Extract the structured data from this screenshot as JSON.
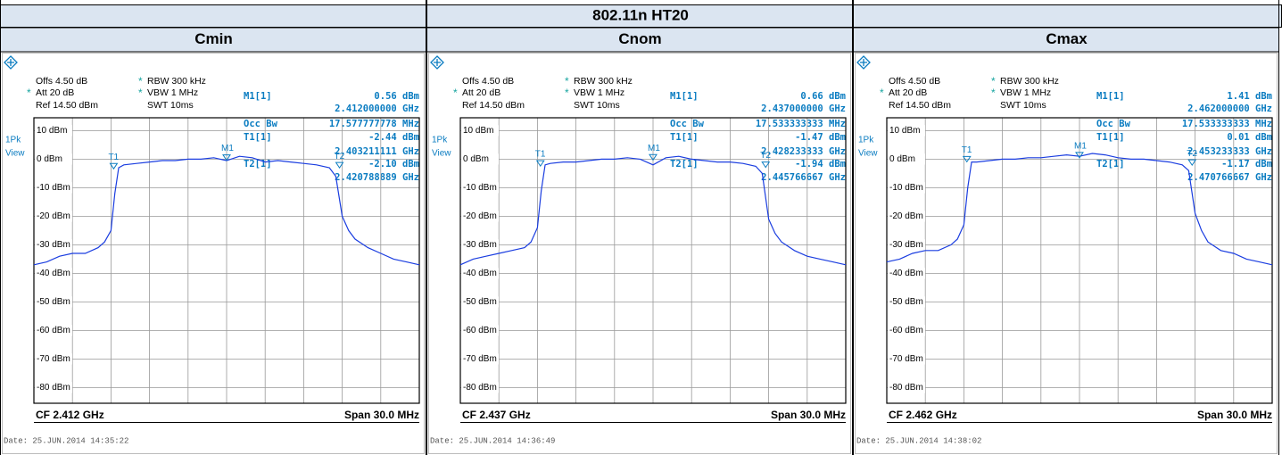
{
  "header": {
    "title": "802.11n HT20"
  },
  "panels": [
    {
      "title": "Cmin",
      "settings": [
        {
          "text": "Offs 4.50 dB"
        },
        {
          "mark": "*",
          "text": "Att  20 dB"
        },
        {
          "text": "Ref  14.50 dBm"
        },
        {
          "mark": "*",
          "text": "RBW 300 kHz"
        },
        {
          "mark": "*",
          "text": "VBW 1 MHz"
        },
        {
          "text": "SWT 10ms"
        }
      ],
      "trace_label": [
        "1Pk",
        "View"
      ],
      "readout": [
        {
          "label": "M1[1]",
          "value": "0.56 dBm"
        },
        {
          "value": "2.412000000 GHz"
        },
        {
          "label": "Occ Bw",
          "value": "17.577777778 MHz"
        },
        {
          "label": "T1[1]",
          "value": "-2.44 dBm"
        },
        {
          "value": "2.403211111 GHz"
        },
        {
          "label": "T2[1]",
          "value": "-2.10 dBm"
        },
        {
          "value": "2.420788889 GHz"
        }
      ],
      "plot": {
        "ylim": [
          -85.5,
          14.5
        ],
        "yticks": [
          {
            "value": 10,
            "label": "10 dBm"
          },
          {
            "value": 0,
            "label": "0 dBm"
          },
          {
            "value": -10,
            "label": "-10 dBm"
          },
          {
            "value": -20,
            "label": "-20 dBm"
          },
          {
            "value": -30,
            "label": "-30 dBm"
          },
          {
            "value": -40,
            "label": "-40 dBm"
          },
          {
            "value": -50,
            "label": "-50 dBm"
          },
          {
            "value": -60,
            "label": "-60 dBm"
          },
          {
            "value": -70,
            "label": "-70 dBm"
          },
          {
            "value": -80,
            "label": "-80 dBm"
          }
        ],
        "xlim": [
          -15,
          15
        ],
        "xticks": [
          -15,
          -12,
          -9,
          -6,
          -3,
          0,
          3,
          6,
          9,
          12,
          15
        ],
        "trace": {
          "x": [
            -15,
            -14,
            -13,
            -12,
            -11,
            -10,
            -9.5,
            -9,
            -8.7,
            -8.4,
            -8,
            -7,
            -6,
            -5,
            -4,
            -3,
            -2,
            -1,
            0,
            1,
            2,
            3,
            4,
            5,
            6,
            7,
            8,
            8.5,
            9,
            9.5,
            10,
            11,
            12,
            13,
            14,
            15
          ],
          "values": [
            -37,
            -36,
            -34,
            -33,
            -33,
            -31,
            -29,
            -25,
            -12,
            -3,
            -2,
            -1.5,
            -1,
            -0.5,
            -0.5,
            0,
            0,
            0.5,
            -0.5,
            1,
            0.5,
            -1,
            -0.5,
            -1,
            -1.5,
            -2,
            -3,
            -6,
            -20,
            -25,
            -28,
            -31,
            -33,
            -35,
            -36,
            -37
          ]
        },
        "markers": [
          {
            "label": "T1",
            "x": -8.788889,
            "y": -2.44
          },
          {
            "label": "M1",
            "x": 0,
            "y": 0.56
          },
          {
            "label": "T2",
            "x": 8.788889,
            "y": -2.1
          }
        ]
      },
      "footer": {
        "cf": "CF 2.412 GHz",
        "span": "Span 30.0 MHz"
      },
      "date": "Date: 25.JUN.2014  14:35:22"
    },
    {
      "title": "Cnom",
      "settings": [
        {
          "text": "Offs 4.50 dB"
        },
        {
          "mark": "*",
          "text": "Att  20 dB"
        },
        {
          "text": "Ref  14.50 dBm"
        },
        {
          "mark": "*",
          "text": "RBW 300 kHz"
        },
        {
          "mark": "*",
          "text": "VBW 1 MHz"
        },
        {
          "text": "SWT 10ms"
        }
      ],
      "trace_label": [
        "1Pk",
        "View"
      ],
      "readout": [
        {
          "label": "M1[1]",
          "value": "0.66 dBm"
        },
        {
          "value": "2.437000000 GHz"
        },
        {
          "label": "Occ Bw",
          "value": "17.533333333 MHz"
        },
        {
          "label": "T1[1]",
          "value": "-1.47 dBm"
        },
        {
          "value": "2.428233333 GHz"
        },
        {
          "label": "T2[1]",
          "value": "-1.94 dBm"
        },
        {
          "value": "2.445766667 GHz"
        }
      ],
      "plot": {
        "ylim": [
          -85.5,
          14.5
        ],
        "yticks": [
          {
            "value": 10,
            "label": "10 dBm"
          },
          {
            "value": 0,
            "label": "0 dBm"
          },
          {
            "value": -10,
            "label": "-10 dBm"
          },
          {
            "value": -20,
            "label": "-20 dBm"
          },
          {
            "value": -30,
            "label": "-30 dBm"
          },
          {
            "value": -40,
            "label": "-40 dBm"
          },
          {
            "value": -50,
            "label": "-50 dBm"
          },
          {
            "value": -60,
            "label": "-60 dBm"
          },
          {
            "value": -70,
            "label": "-70 dBm"
          },
          {
            "value": -80,
            "label": "-80 dBm"
          }
        ],
        "xlim": [
          -15,
          15
        ],
        "xticks": [
          -15,
          -12,
          -9,
          -6,
          -3,
          0,
          3,
          6,
          9,
          12,
          15
        ],
        "trace": {
          "x": [
            -15,
            -14,
            -13,
            -12,
            -11,
            -10,
            -9.5,
            -9,
            -8.7,
            -8.4,
            -8,
            -7,
            -6,
            -5,
            -4,
            -3,
            -2,
            -1,
            0,
            1,
            2,
            3,
            4,
            5,
            6,
            7,
            8,
            8.5,
            9,
            9.5,
            10,
            11,
            12,
            13,
            14,
            15
          ],
          "values": [
            -37,
            -35,
            -34,
            -33,
            -32,
            -31,
            -29,
            -24,
            -11,
            -2,
            -1.5,
            -1,
            -1,
            -0.5,
            0,
            0,
            0.5,
            0,
            -2,
            0.5,
            1,
            0,
            -0.5,
            -1,
            -1,
            -1.5,
            -2.5,
            -5,
            -21,
            -26,
            -29,
            -32,
            -34,
            -35,
            -36,
            -37
          ]
        },
        "markers": [
          {
            "label": "T1",
            "x": -8.766667,
            "y": -1.47
          },
          {
            "label": "M1",
            "x": 0,
            "y": 0.66
          },
          {
            "label": "T2",
            "x": 8.766667,
            "y": -1.94
          }
        ]
      },
      "footer": {
        "cf": "CF 2.437 GHz",
        "span": "Span 30.0 MHz"
      },
      "date": "Date: 25.JUN.2014  14:36:49"
    },
    {
      "title": "Cmax",
      "settings": [
        {
          "text": "Offs 4.50 dB"
        },
        {
          "mark": "*",
          "text": "Att  20 dB"
        },
        {
          "text": "Ref  14.50 dBm"
        },
        {
          "mark": "*",
          "text": "RBW 300 kHz"
        },
        {
          "mark": "*",
          "text": "VBW 1 MHz"
        },
        {
          "text": "SWT 10ms"
        }
      ],
      "trace_label": [
        "1Pk",
        "View"
      ],
      "readout": [
        {
          "label": "M1[1]",
          "value": "1.41 dBm"
        },
        {
          "value": "2.462000000 GHz"
        },
        {
          "label": "Occ Bw",
          "value": "17.533333333 MHz"
        },
        {
          "label": "T1[1]",
          "value": "0.01 dBm"
        },
        {
          "value": "2.453233333 GHz"
        },
        {
          "label": "T2[1]",
          "value": "-1.17 dBm"
        },
        {
          "value": "2.470766667 GHz"
        }
      ],
      "plot": {
        "ylim": [
          -85.5,
          14.5
        ],
        "yticks": [
          {
            "value": 10,
            "label": "10 dBm"
          },
          {
            "value": 0,
            "label": "0 dBm"
          },
          {
            "value": -10,
            "label": "-10 dBm"
          },
          {
            "value": -20,
            "label": "-20 dBm"
          },
          {
            "value": -30,
            "label": "-30 dBm"
          },
          {
            "value": -40,
            "label": "-40 dBm"
          },
          {
            "value": -50,
            "label": "-50 dBm"
          },
          {
            "value": -60,
            "label": "-60 dBm"
          },
          {
            "value": -70,
            "label": "-70 dBm"
          },
          {
            "value": -80,
            "label": "-80 dBm"
          }
        ],
        "xlim": [
          -15,
          15
        ],
        "xticks": [
          -15,
          -12,
          -9,
          -6,
          -3,
          0,
          3,
          6,
          9,
          12,
          15
        ],
        "trace": {
          "x": [
            -15,
            -14,
            -13,
            -12,
            -11,
            -10,
            -9.5,
            -9,
            -8.7,
            -8.4,
            -8,
            -7,
            -6,
            -5,
            -4,
            -3,
            -2,
            -1,
            0,
            1,
            2,
            3,
            4,
            5,
            6,
            7,
            8,
            8.5,
            9,
            9.5,
            10,
            11,
            12,
            13,
            14,
            15
          ],
          "values": [
            -36,
            -35,
            -33,
            -32,
            -32,
            -30,
            -28,
            -23,
            -10,
            -1,
            -1,
            -0.5,
            0,
            0,
            0.5,
            0.5,
            1,
            1.5,
            1,
            2,
            1.5,
            0.5,
            0,
            0,
            -0.5,
            -1,
            -2,
            -4,
            -19,
            -25,
            -29,
            -32,
            -33,
            -35,
            -36,
            -37
          ]
        },
        "markers": [
          {
            "label": "T1",
            "x": -8.766667,
            "y": 0.01
          },
          {
            "label": "M1",
            "x": 0,
            "y": 1.41
          },
          {
            "label": "T2",
            "x": 8.766667,
            "y": -1.17
          }
        ]
      },
      "footer": {
        "cf": "CF 2.462 GHz",
        "span": "Span 30.0 MHz"
      },
      "date": "Date: 25.JUN.2014  14:38:02"
    }
  ]
}
